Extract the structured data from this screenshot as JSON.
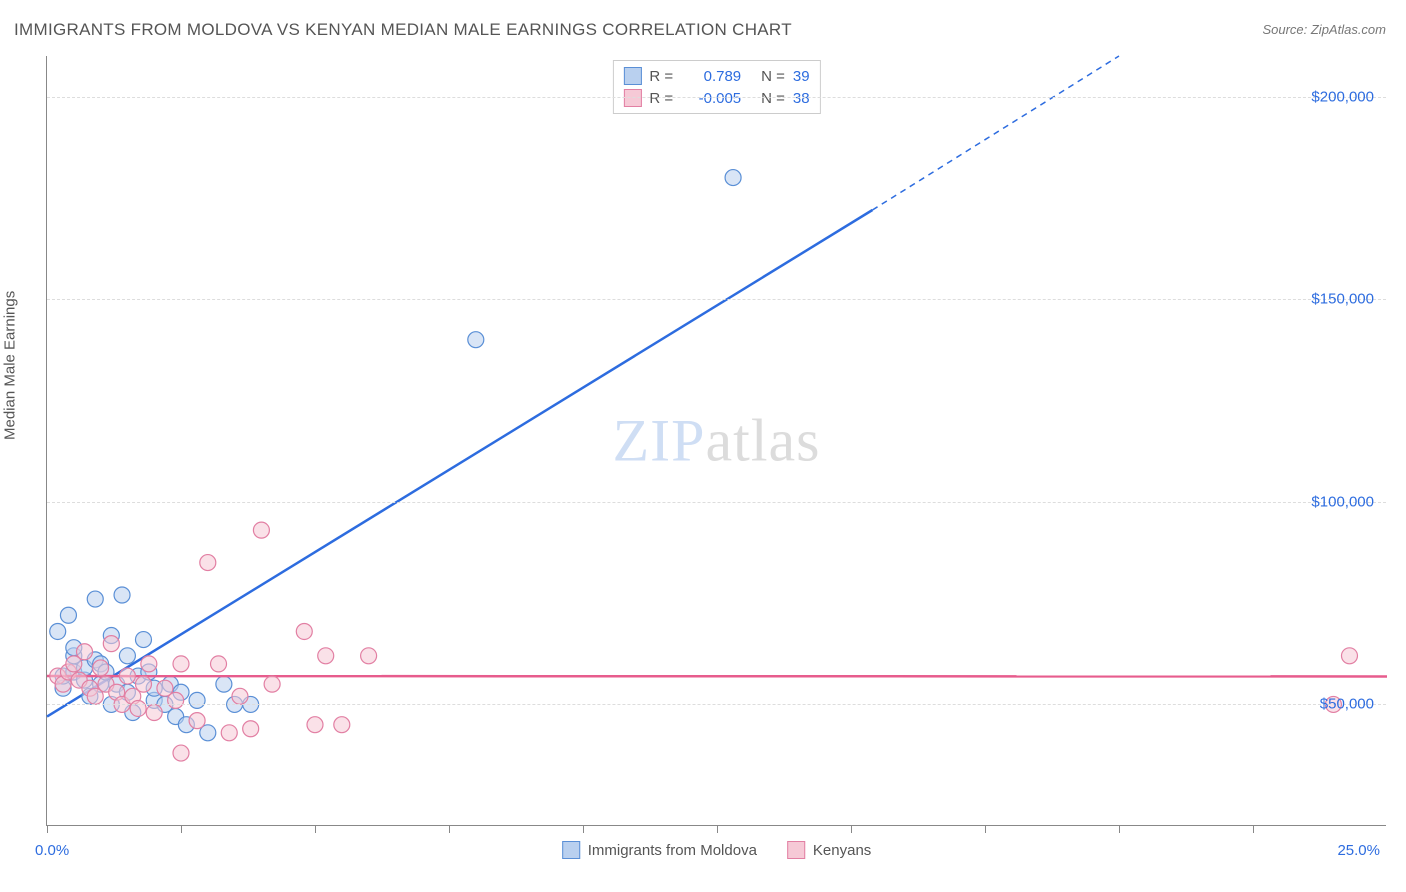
{
  "title": "IMMIGRANTS FROM MOLDOVA VS KENYAN MEDIAN MALE EARNINGS CORRELATION CHART",
  "source_prefix": "Source: ",
  "source_name": "ZipAtlas.com",
  "y_axis_label": "Median Male Earnings",
  "watermark_a": "ZIP",
  "watermark_b": "atlas",
  "chart": {
    "type": "scatter",
    "background_color": "#ffffff",
    "grid_color": "#dddddd",
    "axis_color": "#888888",
    "x": {
      "min": 0.0,
      "max": 25.0,
      "min_label": "0.0%",
      "max_label": "25.0%",
      "ticks": [
        0,
        2.5,
        5,
        7.5,
        10,
        12.5,
        15,
        17.5,
        20,
        22.5
      ]
    },
    "y": {
      "min": 20000,
      "max": 210000,
      "ticks": [
        50000,
        100000,
        150000,
        200000
      ],
      "tick_labels": [
        "$50,000",
        "$100,000",
        "$150,000",
        "$200,000"
      ]
    },
    "series": [
      {
        "key": "moldova",
        "label": "Immigrants from Moldova",
        "fill": "#b9d0ef",
        "stroke": "#5a8fd6",
        "line_color": "#2d6cdf",
        "r_label": "R =",
        "r_value": "0.789",
        "n_label": "N =",
        "n_value": "39",
        "marker_radius": 8,
        "trend": {
          "x1": 0.0,
          "y1": 47000,
          "x2_solid": 15.4,
          "y2_solid": 172000,
          "x2_dash": 20.0,
          "y2_dash": 210000
        },
        "points": [
          [
            0.2,
            68000
          ],
          [
            0.3,
            54000
          ],
          [
            0.3,
            57000
          ],
          [
            0.4,
            72000
          ],
          [
            0.5,
            58000
          ],
          [
            0.5,
            62000
          ],
          [
            0.5,
            64000
          ],
          [
            0.7,
            56000
          ],
          [
            0.7,
            59000
          ],
          [
            0.8,
            52000
          ],
          [
            0.9,
            61000
          ],
          [
            0.9,
            76000
          ],
          [
            1.0,
            55000
          ],
          [
            1.0,
            60000
          ],
          [
            1.1,
            58000
          ],
          [
            1.2,
            50000
          ],
          [
            1.2,
            67000
          ],
          [
            1.3,
            55000
          ],
          [
            1.4,
            77000
          ],
          [
            1.5,
            53000
          ],
          [
            1.5,
            62000
          ],
          [
            1.6,
            48000
          ],
          [
            1.7,
            57000
          ],
          [
            1.8,
            66000
          ],
          [
            1.9,
            58000
          ],
          [
            2.0,
            51000
          ],
          [
            2.0,
            54000
          ],
          [
            2.2,
            50000
          ],
          [
            2.3,
            55000
          ],
          [
            2.4,
            47000
          ],
          [
            2.5,
            53000
          ],
          [
            2.6,
            45000
          ],
          [
            2.8,
            51000
          ],
          [
            3.0,
            43000
          ],
          [
            3.3,
            55000
          ],
          [
            3.5,
            50000
          ],
          [
            3.8,
            50000
          ],
          [
            8.0,
            140000
          ],
          [
            12.8,
            180000
          ]
        ]
      },
      {
        "key": "kenyan",
        "label": "Kenyans",
        "fill": "#f6c9d6",
        "stroke": "#e27fa3",
        "line_color": "#e75c8d",
        "r_label": "R =",
        "r_value": "-0.005",
        "n_label": "N =",
        "n_value": "38",
        "marker_radius": 8,
        "trend": {
          "x1": 0.0,
          "y1": 57000,
          "x2_solid": 25.0,
          "y2_solid": 56900,
          "x2_dash": 25.0,
          "y2_dash": 56900
        },
        "points": [
          [
            0.2,
            57000
          ],
          [
            0.3,
            55000
          ],
          [
            0.4,
            58000
          ],
          [
            0.5,
            60000
          ],
          [
            0.6,
            56000
          ],
          [
            0.7,
            63000
          ],
          [
            0.8,
            54000
          ],
          [
            0.9,
            52000
          ],
          [
            1.0,
            59000
          ],
          [
            1.1,
            55000
          ],
          [
            1.2,
            65000
          ],
          [
            1.3,
            53000
          ],
          [
            1.4,
            50000
          ],
          [
            1.5,
            57000
          ],
          [
            1.6,
            52000
          ],
          [
            1.7,
            49000
          ],
          [
            1.8,
            55000
          ],
          [
            1.9,
            60000
          ],
          [
            2.0,
            48000
          ],
          [
            2.2,
            54000
          ],
          [
            2.4,
            51000
          ],
          [
            2.5,
            38000
          ],
          [
            2.5,
            60000
          ],
          [
            2.8,
            46000
          ],
          [
            3.0,
            85000
          ],
          [
            3.2,
            60000
          ],
          [
            3.4,
            43000
          ],
          [
            3.6,
            52000
          ],
          [
            3.8,
            44000
          ],
          [
            4.0,
            93000
          ],
          [
            4.2,
            55000
          ],
          [
            4.8,
            68000
          ],
          [
            5.0,
            45000
          ],
          [
            5.2,
            62000
          ],
          [
            5.5,
            45000
          ],
          [
            6.0,
            62000
          ],
          [
            24.0,
            50000
          ],
          [
            24.3,
            62000
          ]
        ]
      }
    ]
  }
}
